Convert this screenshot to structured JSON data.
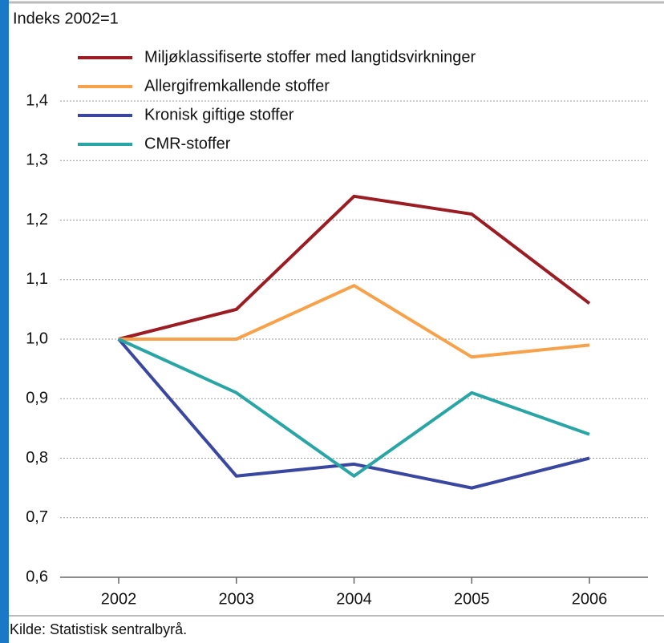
{
  "chart_data": {
    "type": "line",
    "y_axis_label": "Indeks 2002=1",
    "source": "Kilde: Statistisk sentralbyrå.",
    "categories": [
      "2002",
      "2003",
      "2004",
      "2005",
      "2006"
    ],
    "series": [
      {
        "name": "Miljøklassifiserte stoffer med langtidsvirkninger",
        "color": "#9b1c22",
        "values": [
          1.0,
          1.05,
          1.24,
          1.21,
          1.06
        ]
      },
      {
        "name": "Allergifremkallende stoffer",
        "color": "#f7a24a",
        "values": [
          1.0,
          1.0,
          1.09,
          0.97,
          0.99
        ]
      },
      {
        "name": "Kronisk giftige stoffer",
        "color": "#3a47a0",
        "values": [
          1.0,
          0.77,
          0.79,
          0.75,
          0.8
        ]
      },
      {
        "name": "CMR-stoffer",
        "color": "#2aa5a5",
        "values": [
          1.0,
          0.91,
          0.77,
          0.91,
          0.84
        ]
      }
    ],
    "ylim": [
      0.6,
      1.4
    ],
    "yticks": [
      {
        "value": 0.6,
        "label": "0,6"
      },
      {
        "value": 0.7,
        "label": "0,7"
      },
      {
        "value": 0.8,
        "label": "0,8"
      },
      {
        "value": 0.9,
        "label": "0,9"
      },
      {
        "value": 1.0,
        "label": "1,0"
      },
      {
        "value": 1.1,
        "label": "1,1"
      },
      {
        "value": 1.2,
        "label": "1,2"
      },
      {
        "value": 1.3,
        "label": "1,3"
      },
      {
        "value": 1.4,
        "label": "1,4"
      }
    ],
    "grid": true
  }
}
